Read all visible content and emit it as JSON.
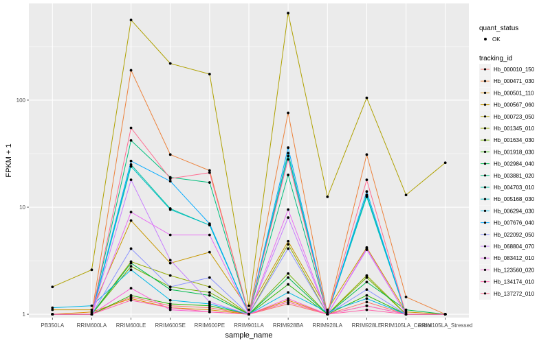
{
  "chart_data": {
    "type": "line",
    "xlabel": "sample_name",
    "ylabel": "FPKM + 1",
    "y_scale": "log10",
    "ylim": [
      0.93,
      800
    ],
    "y_ticks": [
      {
        "value": 1,
        "label": "1"
      },
      {
        "value": 10,
        "label": "10"
      },
      {
        "value": 100,
        "label": "100"
      }
    ],
    "categories": [
      "PB350LA",
      "RRIM600LA",
      "RRIM600LE",
      "RRIM600SE",
      "RRIM600PE",
      "RRIM901LA",
      "RRIM928BA",
      "RRIM928LA",
      "RRIM928LE",
      "RRIM105LA_Control",
      "RRIM105LA_Stressed"
    ],
    "grid": true,
    "background": "#ebebeb",
    "legend_position": "right",
    "legend_shape": {
      "title": "quant_status",
      "entries": [
        "OK"
      ]
    },
    "legend_color_title": "tracking_id",
    "series": [
      {
        "name": "Hb_000010_150",
        "color": "#f8766d",
        "values": [
          1.0,
          1.0,
          1.45,
          1.2,
          1.15,
          1.0,
          1.25,
          1.0,
          1.3,
          1.0,
          1.0
        ]
      },
      {
        "name": "Hb_000471_030",
        "color": "#ec823c",
        "values": [
          1.0,
          1.0,
          190,
          31,
          22,
          1.0,
          76,
          1.0,
          31,
          1.45,
          1.0
        ]
      },
      {
        "name": "Hb_000501_110",
        "color": "#dc8e00",
        "values": [
          1.0,
          1.05,
          1.4,
          1.15,
          1.1,
          1.0,
          1.35,
          1.0,
          1.2,
          1.0,
          1.0
        ]
      },
      {
        "name": "Hb_000567_060",
        "color": "#c79800",
        "values": [
          1.1,
          1.1,
          7.5,
          3.0,
          3.8,
          1.1,
          4.8,
          1.1,
          4.2,
          1.05,
          1.0
        ]
      },
      {
        "name": "Hb_000723_050",
        "color": "#afa100",
        "values": [
          1.8,
          2.6,
          560,
          220,
          175,
          1.2,
          650,
          12.5,
          105,
          13,
          26
        ]
      },
      {
        "name": "Hb_001345_010",
        "color": "#93aa00",
        "values": [
          1.0,
          1.0,
          3.1,
          2.3,
          1.8,
          1.0,
          4.5,
          1.0,
          2.3,
          1.0,
          1.0
        ]
      },
      {
        "name": "Hb_001634_030",
        "color": "#6db100",
        "values": [
          1.0,
          1.0,
          2.8,
          1.8,
          1.6,
          1.0,
          2.4,
          1.0,
          2.2,
          1.0,
          1.0
        ]
      },
      {
        "name": "Hb_001918_030",
        "color": "#2ab700",
        "values": [
          1.0,
          1.0,
          1.5,
          1.25,
          1.2,
          1.0,
          1.9,
          1.0,
          1.5,
          1.0,
          1.0
        ]
      },
      {
        "name": "Hb_002984_040",
        "color": "#00bb4e",
        "values": [
          1.0,
          1.0,
          3.0,
          1.7,
          1.5,
          1.0,
          2.2,
          1.0,
          2.0,
          1.1,
          1.0
        ]
      },
      {
        "name": "Hb_003881_020",
        "color": "#00be7d",
        "values": [
          1.0,
          1.0,
          42,
          19,
          17,
          1.0,
          20,
          1.0,
          13,
          1.0,
          1.0
        ]
      },
      {
        "name": "Hb_004703_010",
        "color": "#00c0a3",
        "values": [
          1.0,
          1.0,
          25,
          9.7,
          6.8,
          1.0,
          32,
          1.0,
          13,
          1.0,
          1.0
        ]
      },
      {
        "name": "Hb_005168_030",
        "color": "#00bfc4",
        "values": [
          1.0,
          1.0,
          24,
          9.5,
          6.8,
          1.0,
          30,
          1.0,
          12.5,
          1.0,
          1.0
        ]
      },
      {
        "name": "Hb_006294_030",
        "color": "#00b8e5",
        "values": [
          1.15,
          1.2,
          2.6,
          1.35,
          1.25,
          1.0,
          1.6,
          1.05,
          1.4,
          1.0,
          1.0
        ]
      },
      {
        "name": "Hb_007676_040",
        "color": "#00a9ff",
        "values": [
          1.0,
          1.0,
          27,
          17.5,
          7.0,
          1.0,
          36,
          1.0,
          14,
          1.0,
          1.0
        ]
      },
      {
        "name": "Hb_022092_050",
        "color": "#8b93ff",
        "values": [
          1.0,
          1.0,
          4.1,
          1.8,
          2.2,
          1.0,
          4.1,
          1.0,
          1.7,
          1.0,
          1.0
        ]
      },
      {
        "name": "Hb_068804_070",
        "color": "#c77cff",
        "values": [
          1.0,
          1.0,
          18,
          3.2,
          1.3,
          1.0,
          8.0,
          1.0,
          4.0,
          1.0,
          1.0
        ]
      },
      {
        "name": "Hb_083412_010",
        "color": "#e76bf3",
        "values": [
          1.0,
          1.0,
          9.0,
          5.5,
          5.5,
          1.0,
          9.5,
          1.0,
          4.1,
          1.0,
          1.0
        ]
      },
      {
        "name": "Hb_123560_020",
        "color": "#fa62d4",
        "values": [
          1.0,
          1.0,
          1.75,
          1.1,
          1.05,
          1.0,
          1.4,
          1.0,
          1.2,
          1.0,
          1.0
        ]
      },
      {
        "name": "Hb_134174_010",
        "color": "#ff65ac",
        "values": [
          1.0,
          1.0,
          1.35,
          1.15,
          1.05,
          1.0,
          1.3,
          1.0,
          1.1,
          1.0,
          1.0
        ]
      },
      {
        "name": "Hb_137272_010",
        "color": "#ff6c90",
        "values": [
          1.0,
          1.0,
          55,
          18.5,
          21,
          1.0,
          28,
          1.0,
          18,
          1.0,
          1.0
        ]
      }
    ]
  }
}
